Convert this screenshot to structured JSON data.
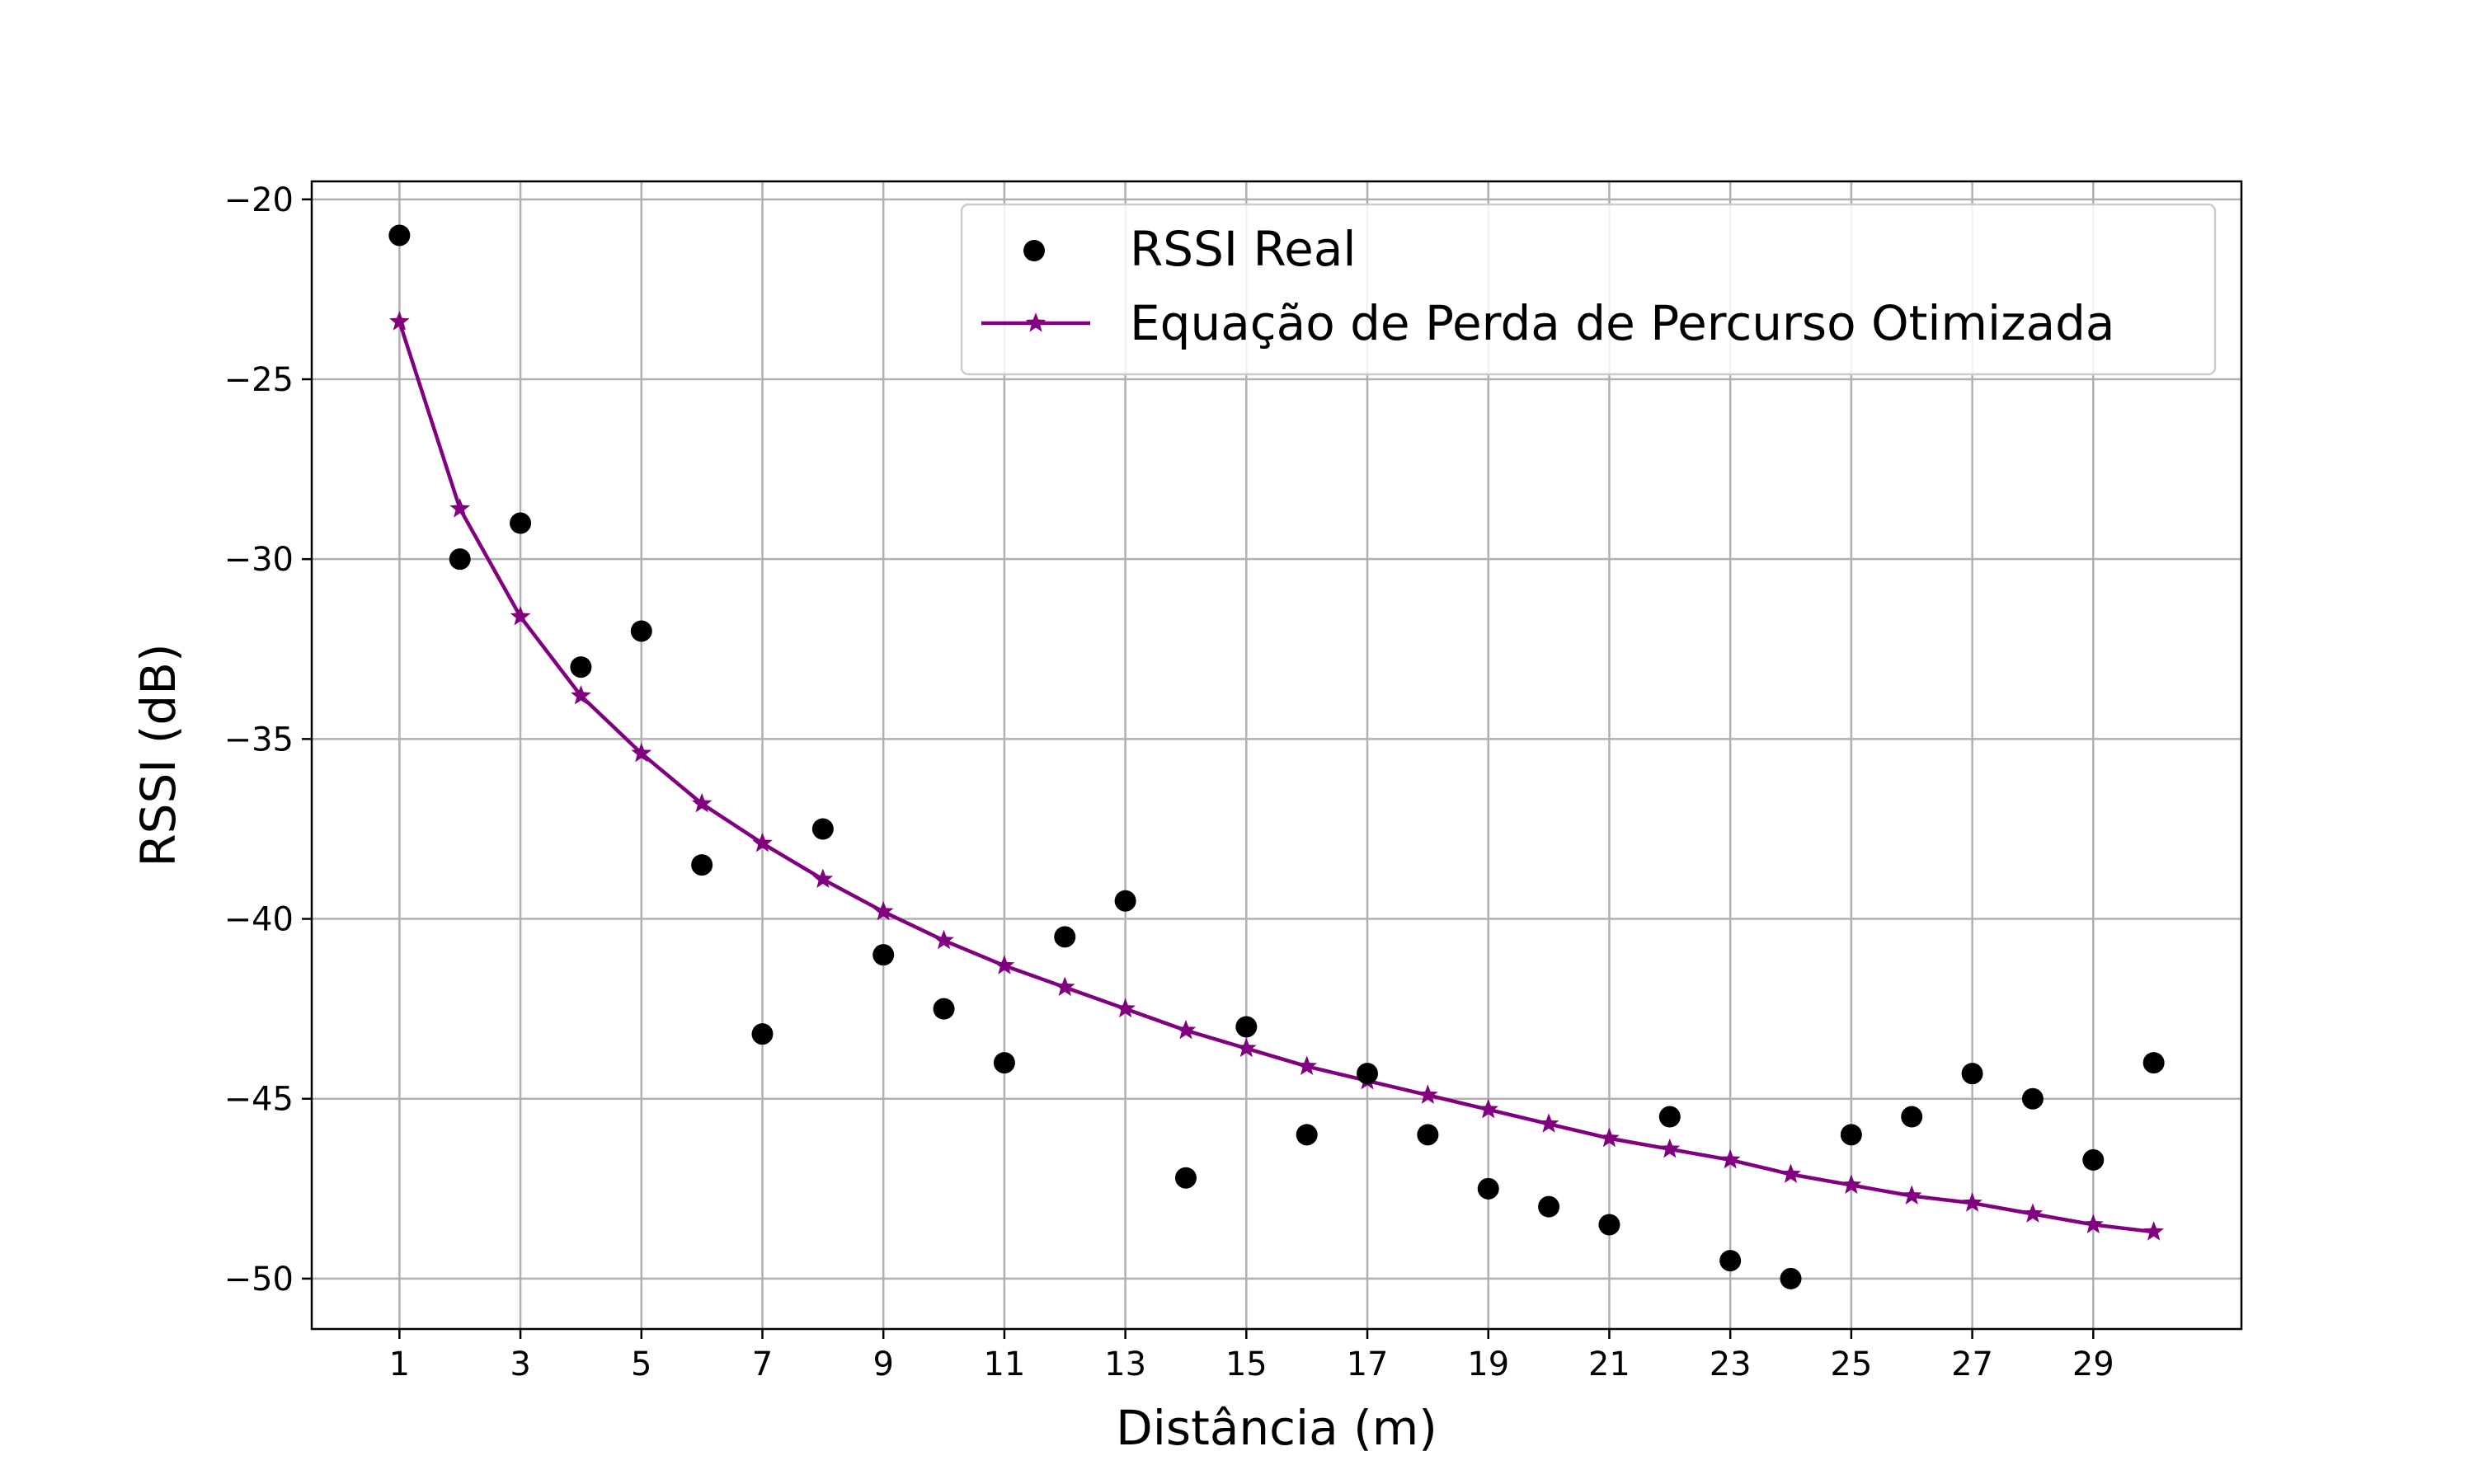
{
  "chart_data": {
    "type": "scatter",
    "title": "",
    "xlabel": "Distância (m)",
    "ylabel": "RSSI (dB)",
    "xlim": [
      -0.45,
      31.45
    ],
    "ylim": [
      -51.4,
      -19.5
    ],
    "xticks": [
      1,
      3,
      5,
      7,
      9,
      11,
      13,
      15,
      17,
      19,
      21,
      23,
      25,
      27,
      29
    ],
    "xtick_labels": [
      "1",
      "3",
      "5",
      "7",
      "9",
      "11",
      "13",
      "15",
      "17",
      "19",
      "21",
      "23",
      "25",
      "27",
      "29"
    ],
    "yticks": [
      -20,
      -25,
      -30,
      -35,
      -40,
      -45,
      -50
    ],
    "ytick_labels": [
      "−20",
      "−25",
      "−30",
      "−35",
      "−40",
      "−45",
      "−50"
    ],
    "grid": true,
    "legend_position": "top-right",
    "series": [
      {
        "name": "RSSI Real",
        "kind": "scatter",
        "color": "#000000",
        "x": [
          1,
          2,
          3,
          4,
          5,
          6,
          7,
          8,
          9,
          10,
          11,
          12,
          13,
          14,
          15,
          16,
          17,
          18,
          19,
          20,
          21,
          22,
          23,
          24,
          25,
          26,
          27,
          28,
          29,
          30
        ],
        "y": [
          -21,
          -30,
          -29,
          -33,
          -32,
          -38.5,
          -43.2,
          -37.5,
          -41,
          -42.5,
          -44,
          -40.5,
          -39.5,
          -47.2,
          -43,
          -46,
          -44.3,
          -46,
          -47.5,
          -48,
          -48.5,
          -45.5,
          -49.5,
          -50,
          -46,
          -45.5,
          -44.3,
          -45,
          -46.7,
          -44
        ]
      },
      {
        "name": "Equação de Perda de Percurso Otimizada",
        "kind": "line-star",
        "color": "#800080",
        "x": [
          1,
          2,
          3,
          4,
          5,
          6,
          7,
          8,
          9,
          10,
          11,
          12,
          13,
          14,
          15,
          16,
          17,
          18,
          19,
          20,
          21,
          22,
          23,
          24,
          25,
          26,
          27,
          28,
          29,
          30
        ],
        "y": [
          -23.4,
          -28.6,
          -31.6,
          -33.8,
          -35.4,
          -36.8,
          -37.9,
          -38.9,
          -39.8,
          -40.6,
          -41.3,
          -41.9,
          -42.5,
          -43.1,
          -43.6,
          -44.1,
          -44.5,
          -44.9,
          -45.3,
          -45.7,
          -46.1,
          -46.4,
          -46.7,
          -47.1,
          -47.4,
          -47.7,
          -47.9,
          -48.2,
          -48.5,
          -48.7
        ]
      }
    ]
  },
  "colors": {
    "grid": "#b0b0b0",
    "axes": "#000000",
    "legend_border": "#cccccc"
  }
}
